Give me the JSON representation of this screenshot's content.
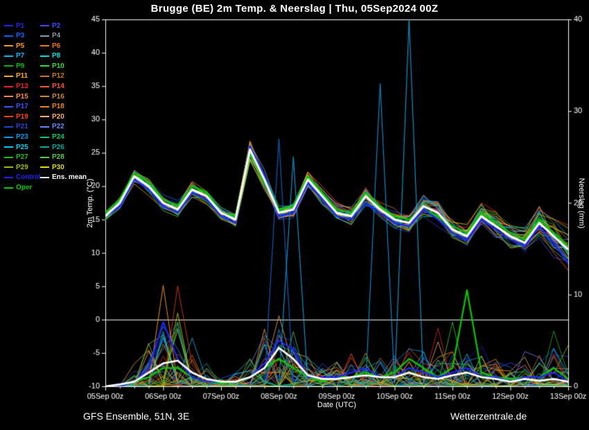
{
  "footer": {
    "left": "GFS Ensemble, 51N, 3E",
    "right": "Wetterzentrale.de"
  },
  "chart_data": {
    "type": "line",
    "title": "Brugge  (BE)  2m Temp. & Neerslag | Thu, 05Sep2024 00Z",
    "xlabel": "Date (UTC)",
    "ylabel_left": "2m Temp. (°C)",
    "ylabel_right": "Neerslag (mm)",
    "y_left": {
      "min": -10,
      "max": 45,
      "step": 5
    },
    "y_right": {
      "min": 0,
      "max": 40,
      "step": 10
    },
    "x_tick_labels": [
      "05Sep 00z",
      "06Sep 00z",
      "07Sep 00z",
      "08Sep 00z",
      "09Sep 00z",
      "10Sep 00z",
      "11Sep 00z",
      "12Sep 00z",
      "13Sep 00z"
    ],
    "steps_per_day": 4,
    "n_points": 33,
    "zero_line_c": 0,
    "grid": false,
    "legend_position": "top-left",
    "series": {
      "ens_mean": {
        "label": "Ens. mean",
        "color": "#ffffff",
        "width": 3,
        "temp": [
          15.5,
          17.5,
          21.5,
          20.0,
          17.5,
          16.5,
          19.5,
          18.5,
          16.0,
          15.0,
          25.5,
          21.0,
          16.0,
          16.5,
          21.0,
          18.5,
          16.0,
          15.5,
          18.5,
          16.5,
          15.0,
          14.5,
          17.0,
          16.0,
          13.5,
          12.5,
          15.5,
          14.0,
          12.5,
          11.5,
          14.5,
          12.5,
          10.5
        ],
        "precip": [
          0,
          0.2,
          0.5,
          1.5,
          2.5,
          2.8,
          1.5,
          0.8,
          0.5,
          0.5,
          1.0,
          2.0,
          4.2,
          3.0,
          1.2,
          0.8,
          0.8,
          1.0,
          1.2,
          1.0,
          1.0,
          1.5,
          1.0,
          0.8,
          1.2,
          1.5,
          1.0,
          0.8,
          0.5,
          0.8,
          0.6,
          0.8,
          0.5
        ]
      },
      "control": {
        "label": "Control",
        "color": "#2222ff",
        "width": 2.5,
        "temp": [
          15.5,
          17.0,
          21.0,
          19.5,
          17.0,
          16.0,
          19.0,
          18.0,
          15.5,
          14.5,
          26.0,
          21.5,
          15.5,
          16.0,
          20.5,
          18.0,
          15.5,
          15.0,
          17.5,
          16.0,
          14.5,
          14.0,
          16.5,
          15.0,
          13.0,
          12.0,
          15.0,
          13.5,
          12.0,
          11.0,
          14.0,
          11.5,
          8.5
        ],
        "precip": [
          0,
          0,
          0.5,
          2.0,
          7.0,
          3.0,
          1.0,
          0.5,
          0.5,
          0.5,
          1.0,
          2.5,
          5.0,
          4.0,
          1.0,
          1.0,
          1.0,
          1.5,
          2.0,
          1.0,
          1.0,
          2.0,
          1.5,
          1.0,
          1.5,
          2.0,
          1.0,
          1.0,
          0.5,
          1.0,
          1.0,
          1.5,
          0.5
        ]
      },
      "oper": {
        "label": "Oper",
        "color": "#00cc00",
        "width": 2.5,
        "temp": [
          16.0,
          18.0,
          22.0,
          20.5,
          18.0,
          17.0,
          20.0,
          19.0,
          16.0,
          15.5,
          25.0,
          20.5,
          16.5,
          17.0,
          21.5,
          19.0,
          16.5,
          16.0,
          19.0,
          17.0,
          15.5,
          15.0,
          16.5,
          15.5,
          14.0,
          13.0,
          16.0,
          14.5,
          13.0,
          12.0,
          15.0,
          13.0,
          11.0
        ],
        "precip": [
          0,
          0,
          0.5,
          1.0,
          2.0,
          2.0,
          1.0,
          0.5,
          0.3,
          0.5,
          1.0,
          2.0,
          3.0,
          2.0,
          1.0,
          0.5,
          1.0,
          1.0,
          1.5,
          1.0,
          1.5,
          3.0,
          2.0,
          1.0,
          2.0,
          10.5,
          1.5,
          1.0,
          0.8,
          1.0,
          1.0,
          2.0,
          0.8
        ]
      }
    },
    "members": [
      {
        "label": "P1",
        "color": "#2222ee"
      },
      {
        "label": "P2",
        "color": "#4444ff"
      },
      {
        "label": "P3",
        "color": "#0066ff"
      },
      {
        "label": "P4",
        "color": "#8899aa"
      },
      {
        "label": "P5",
        "color": "#ff9900"
      },
      {
        "label": "P6",
        "color": "#ee7700"
      },
      {
        "label": "P7",
        "color": "#00bbff"
      },
      {
        "label": "P8",
        "color": "#00dddd"
      },
      {
        "label": "P9",
        "color": "#00bb00"
      },
      {
        "label": "P10",
        "color": "#33dd33"
      },
      {
        "label": "P11",
        "color": "#ffaa22"
      },
      {
        "label": "P12",
        "color": "#cc7722"
      },
      {
        "label": "P13",
        "color": "#ee2222"
      },
      {
        "label": "P14",
        "color": "#ff5533"
      },
      {
        "label": "P15",
        "color": "#ff8844"
      },
      {
        "label": "P16",
        "color": "#cc8833"
      },
      {
        "label": "P17",
        "color": "#3355ff"
      },
      {
        "label": "P18",
        "color": "#ee8800"
      },
      {
        "label": "P19",
        "color": "#ff4400"
      },
      {
        "label": "P20",
        "color": "#ffaa66"
      },
      {
        "label": "P21",
        "color": "#2244cc"
      },
      {
        "label": "P22",
        "color": "#6688ff"
      },
      {
        "label": "P23",
        "color": "#0099ee"
      },
      {
        "label": "P24",
        "color": "#00cc66"
      },
      {
        "label": "P25",
        "color": "#00ccee"
      },
      {
        "label": "P26",
        "color": "#00aa99"
      },
      {
        "label": "P27",
        "color": "#22bb22"
      },
      {
        "label": "P28",
        "color": "#55cc44"
      },
      {
        "label": "P29",
        "color": "#99bb00"
      },
      {
        "label": "P30",
        "color": "#dddd00"
      }
    ],
    "ensemble_spread_c": [
      0.8,
      0.8,
      1.0,
      1.0,
      0.9,
      0.9,
      1.0,
      1.0,
      0.9,
      0.9,
      1.2,
      1.2,
      1.0,
      1.0,
      1.2,
      1.2,
      1.1,
      1.1,
      1.3,
      1.3,
      1.3,
      1.4,
      1.5,
      1.5,
      1.6,
      1.7,
      1.8,
      1.8,
      1.9,
      2.0,
      2.2,
      2.3,
      2.5
    ],
    "precip_activity_mm": [
      0,
      0.1,
      0.4,
      1.2,
      1.8,
      1.8,
      1.0,
      0.5,
      0.3,
      0.4,
      0.8,
      1.5,
      2.2,
      1.8,
      0.8,
      0.6,
      0.7,
      0.8,
      1.0,
      0.9,
      0.9,
      1.1,
      1.0,
      0.8,
      1.0,
      1.2,
      0.9,
      0.8,
      0.6,
      0.8,
      0.7,
      0.9,
      0.6
    ],
    "precip_spikes": [
      {
        "point": 4,
        "mm": 11,
        "color": "#ff9900"
      },
      {
        "point": 5,
        "mm": 8,
        "color": "#bbbb00"
      },
      {
        "point": 12,
        "mm": 27,
        "color": "#0077ee"
      },
      {
        "point": 13,
        "mm": 25,
        "color": "#00bbff"
      },
      {
        "point": 19,
        "mm": 33,
        "color": "#00aaff"
      },
      {
        "point": 21,
        "mm": 40,
        "color": "#00bbff"
      },
      {
        "point": 24,
        "mm": 7,
        "color": "#22bb22"
      }
    ]
  }
}
